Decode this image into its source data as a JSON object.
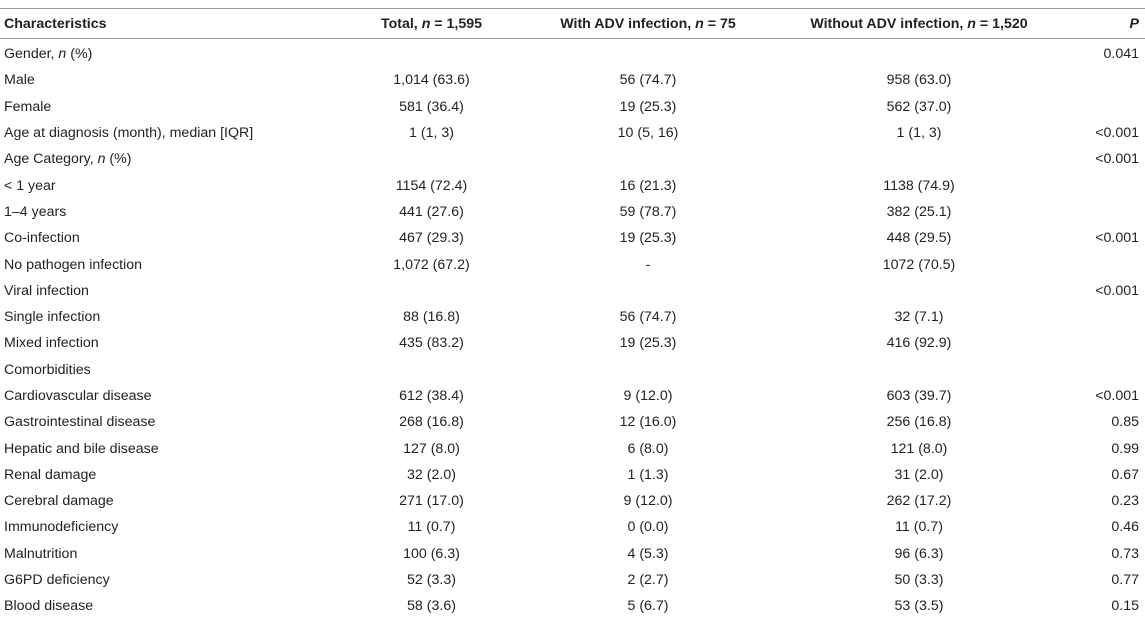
{
  "header": {
    "characteristics": "Characteristics",
    "total_prefix": "Total, ",
    "total_n": "n",
    "total_suffix": " = 1,595",
    "with_prefix": "With ADV infection, ",
    "with_n": "n",
    "with_suffix": " = 75",
    "without_prefix": "Without ADV infection, ",
    "without_n": "n",
    "without_suffix": " = 1,520",
    "p": "P"
  },
  "rows": [
    {
      "label": "Gender, ",
      "label_it": "n",
      "label_tail": " (%)",
      "total": "",
      "with": "",
      "without": "",
      "p": "0.041"
    },
    {
      "label": "Male",
      "label_it": "",
      "label_tail": "",
      "total": "1,014 (63.6)",
      "with": "56 (74.7)",
      "without": "958 (63.0)",
      "p": ""
    },
    {
      "label": "Female",
      "label_it": "",
      "label_tail": "",
      "total": "581 (36.4)",
      "with": "19 (25.3)",
      "without": "562 (37.0)",
      "p": ""
    },
    {
      "label": "Age at diagnosis (month), median [IQR]",
      "label_it": "",
      "label_tail": "",
      "total": "1 (1, 3)",
      "with": "10 (5, 16)",
      "without": "1 (1, 3)",
      "p": "<0.001"
    },
    {
      "label": "Age Category, ",
      "label_it": "n",
      "label_tail": " (%)",
      "total": "",
      "with": "",
      "without": "",
      "p": "<0.001"
    },
    {
      "label": "< 1 year",
      "label_it": "",
      "label_tail": "",
      "total": "1154 (72.4)",
      "with": "16 (21.3)",
      "without": "1138 (74.9)",
      "p": ""
    },
    {
      "label": "1–4 years",
      "label_it": "",
      "label_tail": "",
      "total": "441 (27.6)",
      "with": "59 (78.7)",
      "without": "382 (25.1)",
      "p": ""
    },
    {
      "label": "Co-infection",
      "label_it": "",
      "label_tail": "",
      "total": "467 (29.3)",
      "with": "19 (25.3)",
      "without": "448 (29.5)",
      "p": "<0.001"
    },
    {
      "label": "No pathogen infection",
      "label_it": "",
      "label_tail": "",
      "total": "1,072 (67.2)",
      "with": "-",
      "without": "1072 (70.5)",
      "p": ""
    },
    {
      "label": "Viral infection",
      "label_it": "",
      "label_tail": "",
      "total": "",
      "with": "",
      "without": "",
      "p": "<0.001"
    },
    {
      "label": "Single infection",
      "label_it": "",
      "label_tail": "",
      "total": "88 (16.8)",
      "with": "56 (74.7)",
      "without": "32 (7.1)",
      "p": ""
    },
    {
      "label": "Mixed infection",
      "label_it": "",
      "label_tail": "",
      "total": "435 (83.2)",
      "with": "19 (25.3)",
      "without": "416 (92.9)",
      "p": ""
    },
    {
      "label": "Comorbidities",
      "label_it": "",
      "label_tail": "",
      "total": "",
      "with": "",
      "without": "",
      "p": ""
    },
    {
      "label": "Cardiovascular disease",
      "label_it": "",
      "label_tail": "",
      "total": "612 (38.4)",
      "with": "9 (12.0)",
      "without": "603 (39.7)",
      "p": "<0.001"
    },
    {
      "label": "Gastrointestinal disease",
      "label_it": "",
      "label_tail": "",
      "total": "268 (16.8)",
      "with": "12 (16.0)",
      "without": "256 (16.8)",
      "p": "0.85"
    },
    {
      "label": "Hepatic and bile disease",
      "label_it": "",
      "label_tail": "",
      "total": "127 (8.0)",
      "with": "6 (8.0)",
      "without": "121 (8.0)",
      "p": "0.99"
    },
    {
      "label": "Renal damage",
      "label_it": "",
      "label_tail": "",
      "total": "32 (2.0)",
      "with": "1 (1.3)",
      "without": "31 (2.0)",
      "p": "0.67"
    },
    {
      "label": "Cerebral damage",
      "label_it": "",
      "label_tail": "",
      "total": "271 (17.0)",
      "with": "9 (12.0)",
      "without": "262 (17.2)",
      "p": "0.23"
    },
    {
      "label": "Immunodeficiency",
      "label_it": "",
      "label_tail": "",
      "total": "11 (0.7)",
      "with": "0 (0.0)",
      "without": "11 (0.7)",
      "p": "0.46"
    },
    {
      "label": "Malnutrition",
      "label_it": "",
      "label_tail": "",
      "total": "100 (6.3)",
      "with": "4 (5.3)",
      "without": "96 (6.3)",
      "p": "0.73"
    },
    {
      "label": "G6PD deficiency",
      "label_it": "",
      "label_tail": "",
      "total": "52 (3.3)",
      "with": "2 (2.7)",
      "without": "50 (3.3)",
      "p": "0.77"
    },
    {
      "label": "Blood disease",
      "label_it": "",
      "label_tail": "",
      "total": "58 (3.6)",
      "with": "5 (6.7)",
      "without": "53 (3.5)",
      "p": "0.15"
    }
  ]
}
